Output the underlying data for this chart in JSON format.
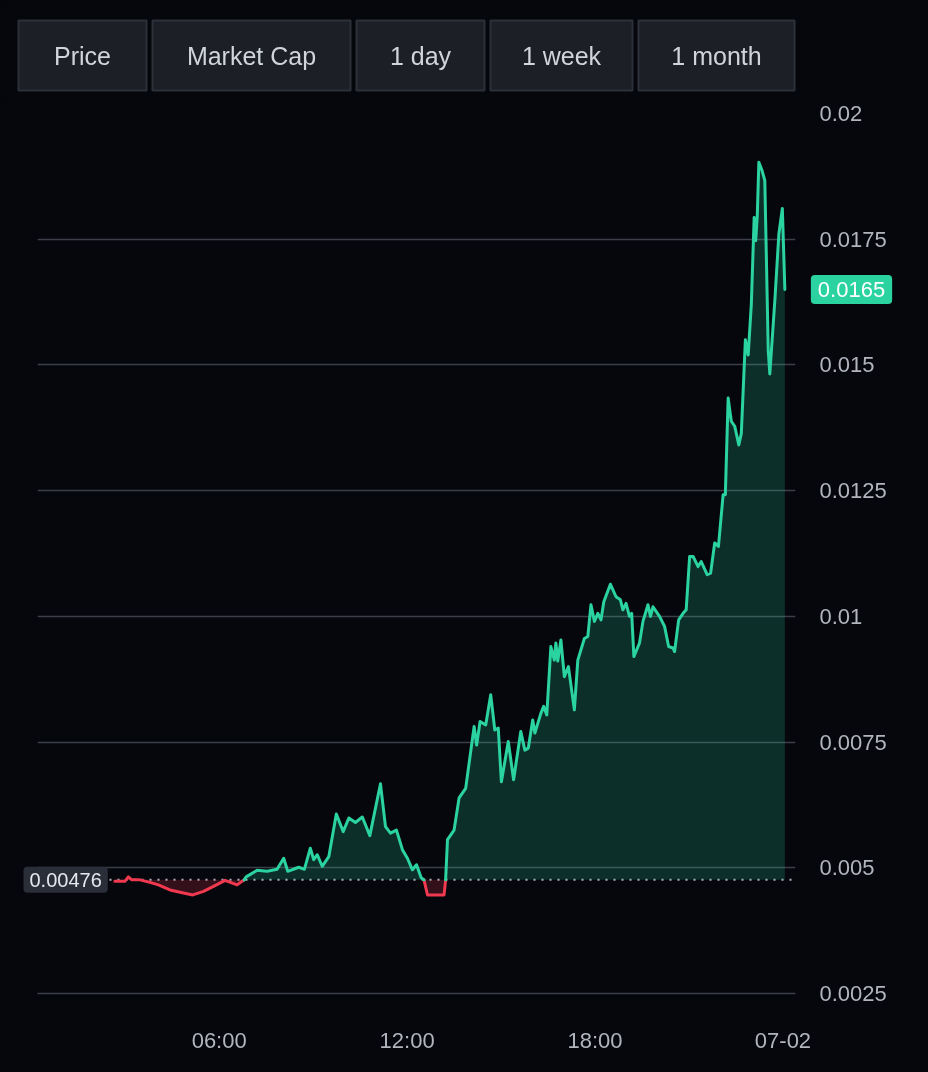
{
  "chart_data": {
    "type": "area",
    "xlim": [
      0.2,
      24.4
    ],
    "xticks": [
      {
        "value": 6,
        "label": "06:00"
      },
      {
        "value": 12,
        "label": "12:00"
      },
      {
        "value": 18,
        "label": "18:00"
      },
      {
        "value": 24,
        "label": "07-02"
      }
    ],
    "ylim": [
      0.0025,
      0.02
    ],
    "yticks": [
      0.0025,
      0.005,
      0.0075,
      0.01,
      0.0125,
      0.015,
      0.0175,
      0.02
    ],
    "grid": "y",
    "ref_lines": [
      {
        "axis": "y",
        "value": 0.00476,
        "label": "0.00476",
        "color": "#b2b5be",
        "line_style": "dotted"
      }
    ],
    "annotations": [
      "Price",
      "Market Cap",
      "1 day",
      "1 week",
      "1 month",
      {
        "text": "0.0165",
        "x": 24.06,
        "y": 0.0165
      }
    ],
    "series": [
      {
        "color": "#f0384e",
        "x": [
          2.67,
          2.99,
          3.1,
          3.21,
          3.47,
          3.79,
          4.06,
          4.43,
          4.86,
          5.16,
          5.5,
          5.82,
          6.19,
          6.57,
          6.8,
          9.9,
          12.54,
          12.65,
          12.86,
          13.18,
          13.23
        ],
        "values": [
          0.00473,
          0.00473,
          0.00482,
          0.00476,
          0.00476,
          0.00471,
          0.00466,
          0.00456,
          0.0045,
          0.00446,
          0.00453,
          0.00463,
          0.00475,
          0.00466,
          0.00476,
          null,
          0.00476,
          0.00446,
          0.00446,
          0.00446,
          0.00476
        ]
      },
      {
        "color": "#2bd3a0",
        "x": [
          6.8,
          6.86,
          7.21,
          7.53,
          7.85,
          8.06,
          8.19,
          8.54,
          8.72,
          8.91,
          9.02,
          9.13,
          9.29,
          9.5,
          9.74,
          9.96,
          10.14,
          10.35,
          10.57,
          10.81,
          11.15,
          11.31,
          11.47,
          11.66,
          11.85,
          12.01,
          12.17,
          12.3,
          12.45,
          12.54,
          12.9,
          13.23,
          13.29,
          13.5,
          13.66,
          13.87,
          14.14,
          14.22,
          14.33,
          14.51,
          14.67,
          14.8,
          14.91,
          15.01,
          15.23,
          15.4,
          15.63,
          15.76,
          15.87,
          16.01,
          16.08,
          16.27,
          16.36,
          16.46,
          16.59,
          16.7,
          16.75,
          16.81,
          16.91,
          17.02,
          17.15,
          17.34,
          17.45,
          17.66,
          17.77,
          17.87,
          17.98,
          18.09,
          18.19,
          18.28,
          18.49,
          18.67,
          18.81,
          18.89,
          18.99,
          19.1,
          19.17,
          19.24,
          19.42,
          19.53,
          19.69,
          19.77,
          19.85,
          20.06,
          20.22,
          20.35,
          20.49,
          20.54,
          20.67,
          20.81,
          20.91,
          21.02,
          21.13,
          21.29,
          21.39,
          21.58,
          21.69,
          21.82,
          21.94,
          22.09,
          22.16,
          22.25,
          22.35,
          22.46,
          22.59,
          22.67,
          22.8,
          22.89,
          22.99,
          23.08,
          23.13,
          23.18,
          23.23,
          23.33,
          23.42,
          23.47,
          23.53,
          23.58,
          23.74,
          23.87,
          23.98,
          24.06
        ],
        "values": [
          0.00476,
          0.00482,
          0.00495,
          0.00493,
          0.00497,
          0.00519,
          0.00493,
          0.00501,
          0.00497,
          0.00539,
          0.00516,
          0.00526,
          0.00503,
          0.00522,
          0.00607,
          0.00572,
          0.00599,
          0.0059,
          0.00601,
          0.00564,
          0.00667,
          0.00582,
          0.00569,
          0.00575,
          0.00536,
          0.00519,
          0.00496,
          0.00506,
          0.0048,
          0.00476,
          null,
          0.00476,
          0.00556,
          0.00575,
          0.00639,
          0.00658,
          0.00781,
          0.00744,
          0.00791,
          0.00784,
          0.00844,
          0.00774,
          0.00778,
          0.00671,
          0.00751,
          0.00675,
          0.00771,
          0.00734,
          0.00738,
          0.00794,
          0.00768,
          0.00807,
          0.00821,
          0.00804,
          0.0094,
          0.00913,
          0.00947,
          0.00911,
          0.00953,
          0.0088,
          0.009,
          0.00814,
          0.00913,
          0.00956,
          0.0096,
          0.01023,
          0.0099,
          0.01006,
          0.00993,
          0.01029,
          0.01064,
          0.01039,
          0.01033,
          0.01013,
          0.01026,
          0.01,
          0.01006,
          0.0092,
          0.00947,
          0.0099,
          0.01023,
          0.01,
          0.01019,
          0.01,
          0.0098,
          0.0094,
          0.00937,
          0.0093,
          0.00993,
          0.01006,
          0.01013,
          0.01119,
          0.01119,
          0.01099,
          0.01109,
          0.01083,
          0.01086,
          0.01146,
          0.01139,
          0.01242,
          0.01242,
          0.01434,
          0.01388,
          0.01378,
          0.01341,
          0.01364,
          0.0155,
          0.0152,
          0.01621,
          0.01793,
          0.01747,
          0.01797,
          0.01903,
          0.01887,
          0.01867,
          0.01714,
          0.01528,
          0.01482,
          0.01628,
          0.01761,
          0.01811,
          0.0165
        ]
      }
    ]
  }
}
